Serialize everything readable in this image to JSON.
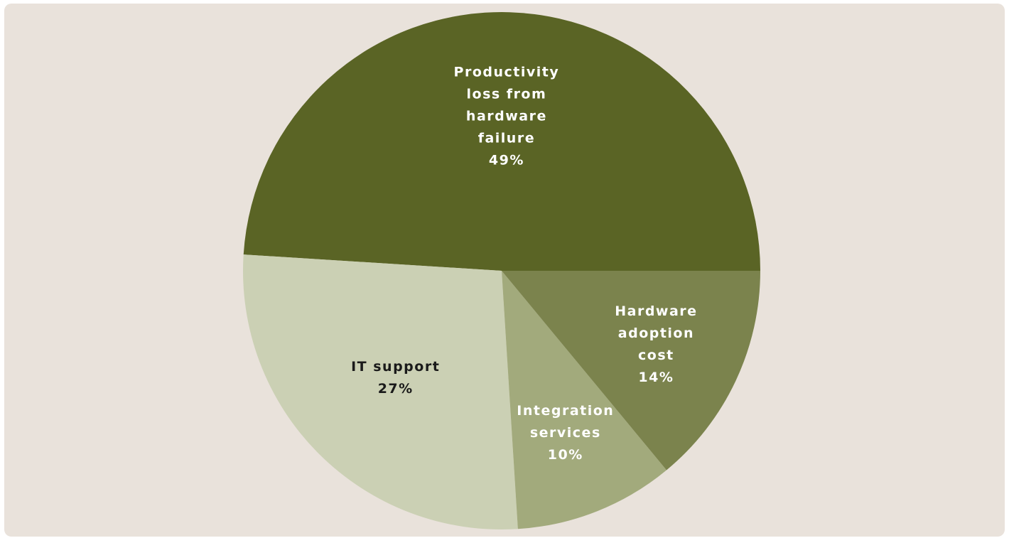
{
  "chart_data": {
    "type": "pie",
    "slices": [
      {
        "label_lines": [
          "Productivity",
          "loss from",
          "hardware",
          "failure"
        ],
        "value": 49,
        "value_label": "49%",
        "color": "#5a6425",
        "text_color": "#ffffff"
      },
      {
        "label_lines": [
          "IT support"
        ],
        "value": 27,
        "value_label": "27%",
        "color": "#cbd0b4",
        "text_color": "#1a1a1a"
      },
      {
        "label_lines": [
          "Integration",
          "services"
        ],
        "value": 10,
        "value_label": "10%",
        "color": "#a2aa7c",
        "text_color": "#ffffff"
      },
      {
        "label_lines": [
          "Hardware",
          "adoption",
          "cost"
        ],
        "value": 14,
        "value_label": "14%",
        "color": "#7b834d",
        "text_color": "#ffffff"
      }
    ],
    "start_angle_deg": 0,
    "direction": "clockwise",
    "legend": "none"
  },
  "colors": {
    "panel_background": "#e9e2db",
    "page_background": "#ffffff"
  }
}
